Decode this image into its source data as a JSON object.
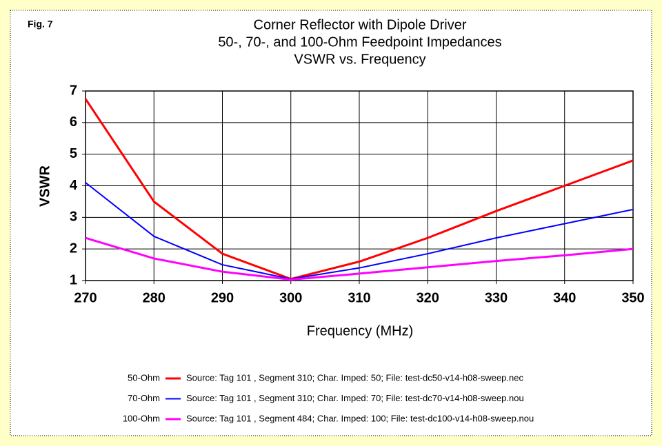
{
  "chart_data": {
    "type": "line",
    "annotation": "Fig. 7",
    "title": [
      "Corner Reflector with Dipole Driver",
      "50-, 70-, and 100-Ohm Feedpoint Impedances",
      "VSWR vs. Frequency"
    ],
    "xlabel": "Frequency (MHz)",
    "ylabel": "VSWR",
    "x": [
      270,
      280,
      290,
      300,
      310,
      320,
      330,
      340,
      350
    ],
    "series": [
      {
        "name": "50-Ohm",
        "color": "#ff0000",
        "legend_text": "Source: Tag 101 , Segment 310; Char. Imped: 50; File: test-dc50-v14-h08-sweep.nec",
        "values": [
          6.75,
          3.5,
          1.85,
          1.05,
          1.6,
          2.35,
          3.2,
          4.0,
          4.8
        ]
      },
      {
        "name": "70-Ohm",
        "color": "#0000ff",
        "legend_text": "Source: Tag 101 , Segment 310; Char. Imped: 70; File: test-dc70-v14-h08-sweep.nou",
        "values": [
          4.1,
          2.4,
          1.5,
          1.05,
          1.4,
          1.85,
          2.35,
          2.8,
          3.25
        ]
      },
      {
        "name": "100-Ohm",
        "color": "#ff00ff",
        "legend_text": "Source: Tag 101 , Segment 484; Char. Imped: 100; File: test-dc100-v14-h08-sweep.nou",
        "values": [
          2.35,
          1.7,
          1.28,
          1.03,
          1.22,
          1.42,
          1.62,
          1.8,
          2.0
        ]
      }
    ],
    "xlim": [
      270,
      350
    ],
    "xticks": [
      270,
      280,
      290,
      300,
      310,
      320,
      330,
      340,
      350
    ],
    "ylim": [
      1,
      7
    ],
    "yticks": [
      1,
      2,
      3,
      4,
      5,
      6,
      7
    ],
    "grid": true
  }
}
